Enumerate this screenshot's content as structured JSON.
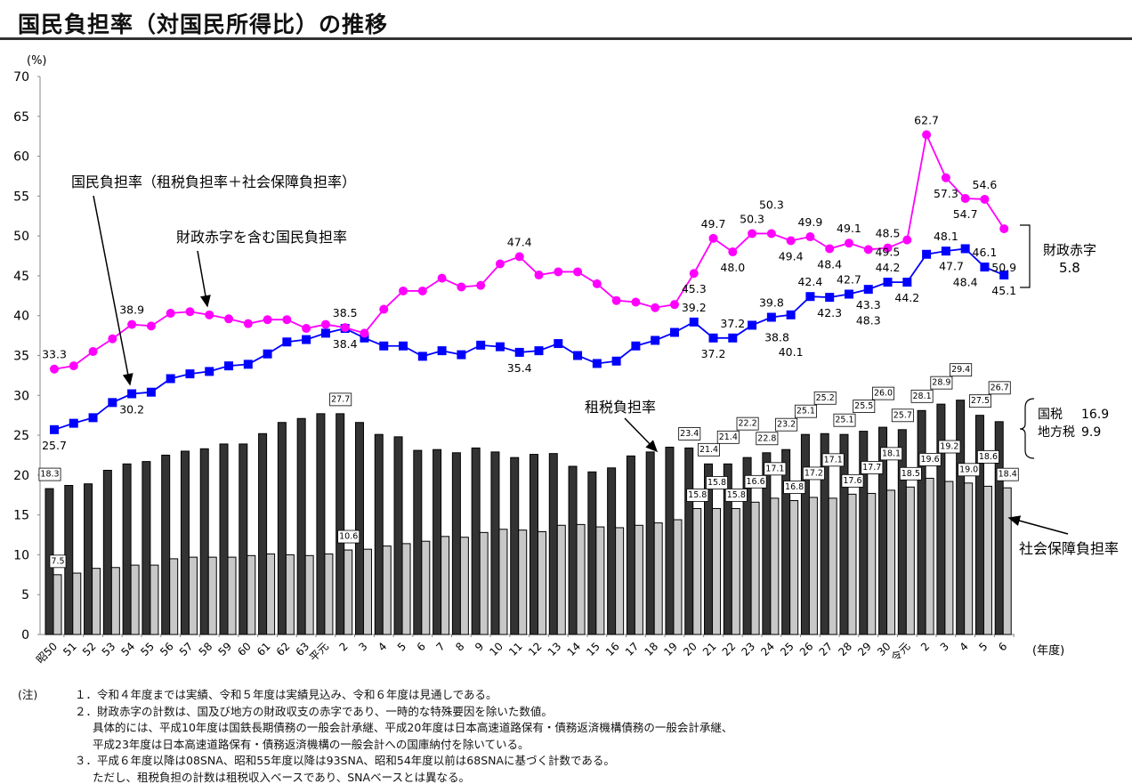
{
  "title": "国民負担率（対国民所得比）の推移",
  "chart_data": {
    "type": "bar+line",
    "title": "国民負担率（対国民所得比）の推移",
    "ylabel": "(%)",
    "xlabel": "(年度)",
    "ylim": [
      0,
      70
    ],
    "yticks": [
      0,
      5,
      10,
      15,
      20,
      25,
      30,
      35,
      40,
      45,
      50,
      55,
      60,
      65,
      70
    ],
    "grid": false,
    "categories": [
      "昭50",
      "51",
      "52",
      "53",
      "54",
      "55",
      "56",
      "57",
      "58",
      "59",
      "60",
      "61",
      "62",
      "63",
      "平元",
      "2",
      "3",
      "4",
      "5",
      "6",
      "7",
      "8",
      "9",
      "10",
      "11",
      "12",
      "13",
      "14",
      "15",
      "16",
      "17",
      "18",
      "19",
      "20",
      "21",
      "22",
      "23",
      "24",
      "25",
      "26",
      "27",
      "28",
      "29",
      "30",
      "令元",
      "2",
      "3",
      "4",
      "5",
      "6"
    ],
    "series": [
      {
        "name": "租税負担率",
        "type": "bar",
        "color": "#333333",
        "values": [
          18.3,
          18.7,
          18.9,
          20.6,
          21.4,
          21.7,
          22.5,
          23.0,
          23.3,
          23.9,
          23.9,
          25.2,
          26.6,
          27.1,
          27.7,
          27.7,
          26.6,
          25.1,
          24.8,
          23.1,
          23.2,
          22.8,
          23.4,
          22.9,
          22.2,
          22.6,
          22.7,
          21.1,
          20.4,
          20.9,
          22.4,
          22.9,
          23.5,
          23.4,
          21.4,
          21.4,
          22.2,
          22.8,
          23.2,
          25.1,
          25.2,
          25.1,
          25.5,
          26.0,
          25.7,
          28.1,
          28.9,
          29.4,
          27.5,
          26.7
        ],
        "labels": [
          {
            "x": "昭50",
            "text": "18.3"
          },
          {
            "x": "2",
            "at": 15,
            "text": "27.7"
          },
          {
            "at": 33,
            "text": "23.4"
          },
          {
            "at": 34,
            "text": "21.4"
          },
          {
            "at": 35,
            "text": "21.4"
          },
          {
            "at": 36,
            "text": "22.2"
          },
          {
            "at": 37,
            "text": "22.8"
          },
          {
            "at": 38,
            "text": "23.2"
          },
          {
            "at": 39,
            "text": "25.1"
          },
          {
            "at": 40,
            "text": "25.2"
          },
          {
            "at": 41,
            "text": "25.1"
          },
          {
            "at": 42,
            "text": "25.5"
          },
          {
            "at": 43,
            "text": "26.0"
          },
          {
            "at": 44,
            "text": "25.7"
          },
          {
            "at": 45,
            "text": "28.1"
          },
          {
            "at": 46,
            "text": "28.9"
          },
          {
            "at": 47,
            "text": "29.4"
          },
          {
            "at": 48,
            "text": "27.5"
          },
          {
            "at": 49,
            "text": "26.7"
          }
        ]
      },
      {
        "name": "社会保障負担率",
        "type": "bar",
        "color": "#c8c8c8",
        "values": [
          7.5,
          7.7,
          8.3,
          8.4,
          8.7,
          8.7,
          9.5,
          9.7,
          9.7,
          9.7,
          9.9,
          10.1,
          10.0,
          9.9,
          10.1,
          10.6,
          10.7,
          11.1,
          11.4,
          11.7,
          12.3,
          12.2,
          12.8,
          13.2,
          13.1,
          12.9,
          13.7,
          13.8,
          13.5,
          13.4,
          13.7,
          14.0,
          14.4,
          15.8,
          15.8,
          15.8,
          16.6,
          17.1,
          16.8,
          17.2,
          17.1,
          17.6,
          17.7,
          18.1,
          18.5,
          19.6,
          19.2,
          19.0,
          18.6,
          18.4
        ],
        "labels": [
          {
            "at": 0,
            "text": "7.5"
          },
          {
            "at": 15,
            "text": "10.6"
          },
          {
            "at": 33,
            "text": "15.8"
          },
          {
            "at": 34,
            "text": "15.8"
          },
          {
            "at": 35,
            "text": "15.8"
          },
          {
            "at": 36,
            "text": "16.6"
          },
          {
            "at": 37,
            "text": "17.1"
          },
          {
            "at": 38,
            "text": "16.8"
          },
          {
            "at": 39,
            "text": "17.2"
          },
          {
            "at": 40,
            "text": "17.1"
          },
          {
            "at": 41,
            "text": "17.6"
          },
          {
            "at": 42,
            "text": "17.7"
          },
          {
            "at": 43,
            "text": "18.1"
          },
          {
            "at": 44,
            "text": "18.5"
          },
          {
            "at": 45,
            "text": "19.6"
          },
          {
            "at": 46,
            "text": "19.2"
          },
          {
            "at": 47,
            "text": "19.0"
          },
          {
            "at": 48,
            "text": "18.6"
          },
          {
            "at": 49,
            "text": "18.4"
          }
        ]
      },
      {
        "name": "国民負担率（租税負担率＋社会保障負担率）",
        "type": "line",
        "marker": "square",
        "color": "#0000ff",
        "values": [
          25.7,
          26.5,
          27.2,
          29.1,
          30.2,
          30.4,
          32.1,
          32.7,
          33.0,
          33.7,
          33.9,
          35.2,
          36.7,
          37.0,
          37.8,
          38.4,
          37.2,
          36.2,
          36.2,
          34.9,
          35.6,
          35.1,
          36.3,
          36.1,
          35.4,
          35.6,
          36.5,
          35.0,
          34.0,
          34.3,
          36.2,
          36.9,
          37.9,
          39.2,
          37.2,
          37.2,
          38.8,
          39.8,
          40.1,
          42.4,
          42.3,
          42.7,
          43.3,
          44.2,
          44.2,
          47.7,
          48.1,
          48.4,
          46.1,
          45.1
        ],
        "labels": [
          {
            "at": 0,
            "text": "25.7",
            "pos": "below"
          },
          {
            "at": 4,
            "text": "30.2",
            "pos": "below"
          },
          {
            "at": 15,
            "text": "38.4",
            "pos": "below"
          },
          {
            "at": 24,
            "text": "35.4",
            "pos": "below"
          },
          {
            "at": 33,
            "text": "39.2",
            "pos": "above"
          },
          {
            "at": 34,
            "text": "37.2",
            "pos": "below"
          },
          {
            "at": 35,
            "text": "37.2",
            "pos": "above"
          },
          {
            "at": 36,
            "text": "38.8",
            "pos": "below-right"
          },
          {
            "at": 37,
            "text": "39.8",
            "pos": "above"
          },
          {
            "at": 38,
            "text": "40.1",
            "pos": "below"
          },
          {
            "at": 39,
            "text": "42.4",
            "pos": "above"
          },
          {
            "at": 40,
            "text": "42.3",
            "pos": "below"
          },
          {
            "at": 41,
            "text": "42.7",
            "pos": "above"
          },
          {
            "at": 42,
            "text": "43.3",
            "pos": "below"
          },
          {
            "at": 43,
            "text": "44.2",
            "pos": "above"
          },
          {
            "at": 44,
            "text": "44.2",
            "pos": "below"
          },
          {
            "at": 45,
            "text": "47.7",
            "pos": "below-right"
          },
          {
            "at": 46,
            "text": "48.1",
            "pos": "above"
          },
          {
            "at": 47,
            "text": "48.4",
            "pos": "below"
          },
          {
            "at": 48,
            "text": "46.1",
            "pos": "above"
          },
          {
            "at": 49,
            "text": "45.1",
            "pos": "below"
          }
        ]
      },
      {
        "name": "財政赤字を含む国民負担率",
        "type": "line",
        "marker": "circle",
        "color": "#ff00ff",
        "values": [
          33.3,
          33.7,
          35.5,
          37.1,
          38.9,
          38.7,
          40.3,
          40.5,
          40.1,
          39.6,
          39.0,
          39.5,
          39.5,
          38.4,
          38.9,
          38.5,
          37.8,
          40.8,
          43.1,
          43.1,
          44.7,
          43.6,
          43.8,
          46.5,
          47.4,
          45.1,
          45.5,
          45.5,
          44.0,
          41.9,
          41.7,
          41.0,
          41.4,
          45.3,
          49.7,
          48.0,
          50.3,
          50.3,
          49.4,
          49.9,
          48.4,
          49.1,
          48.3,
          48.5,
          49.5,
          62.7,
          57.3,
          54.7,
          54.6,
          50.9
        ],
        "labels": [
          {
            "at": 0,
            "text": "33.3",
            "pos": "above"
          },
          {
            "at": 4,
            "text": "38.9",
            "pos": "above"
          },
          {
            "at": 15,
            "text": "38.5",
            "pos": "above"
          },
          {
            "at": 24,
            "text": "47.4",
            "pos": "above"
          },
          {
            "at": 33,
            "text": "45.3",
            "pos": "below"
          },
          {
            "at": 34,
            "text": "49.7",
            "pos": "above"
          },
          {
            "at": 35,
            "text": "48.0",
            "pos": "below"
          },
          {
            "at": 36,
            "text": "50.3",
            "pos": "above"
          },
          {
            "at": 37,
            "text": "50.3",
            "pos": "above"
          },
          {
            "at": 38,
            "text": "49.4",
            "pos": "below"
          },
          {
            "at": 39,
            "text": "49.9",
            "pos": "above"
          },
          {
            "at": 40,
            "text": "48.4",
            "pos": "below"
          },
          {
            "at": 41,
            "text": "49.1",
            "pos": "above"
          },
          {
            "at": 42,
            "text": "48.3",
            "pos": "below"
          },
          {
            "at": 43,
            "text": "48.5",
            "pos": "above"
          },
          {
            "at": 44,
            "text": "49.5",
            "pos": "below-left"
          },
          {
            "at": 45,
            "text": "62.7",
            "pos": "above"
          },
          {
            "at": 46,
            "text": "57.3",
            "pos": "below"
          },
          {
            "at": 47,
            "text": "54.7",
            "pos": "below"
          },
          {
            "at": 48,
            "text": "54.6",
            "pos": "above"
          },
          {
            "at": 49,
            "text": "50.9",
            "pos": "below"
          }
        ]
      }
    ],
    "annotations": {
      "national_burden": "国民負担率（租税負担率＋社会保障負担率）",
      "with_deficit": "財政赤字を含む国民負担率",
      "tax": "租税負担率",
      "social": "社会保障負担率",
      "national_tax_label": "国税",
      "national_tax_value": "16.9",
      "local_tax_label": "地方税",
      "local_tax_value": "9.9",
      "deficit_label": "財政赤字",
      "deficit_value": "5.8"
    }
  },
  "notes": {
    "lead": "(注)",
    "items": [
      "１．令和４年度までは実績、令和５年度は実績見込み、令和６年度は見通しである。",
      "２．財政赤字の計数は、国及び地方の財政収支の赤字であり、一時的な特殊要因を除いた数値。",
      "具体的には、平成10年度は国鉄長期債務の一般会計承継、平成20年度は日本高速道路保有・債務返済機構債務の一般会計承継、",
      "平成23年度は日本高速道路保有・債務返済機構の一般会計への国庫納付を除いている。",
      "３．平成６年度以降は08SNA、昭和55年度以降は93SNA、昭和54年度以前は68SNAに基づく計数である。",
      "ただし、租税負担の計数は租税収入ベースであり、SNAベースとは異なる。"
    ]
  }
}
